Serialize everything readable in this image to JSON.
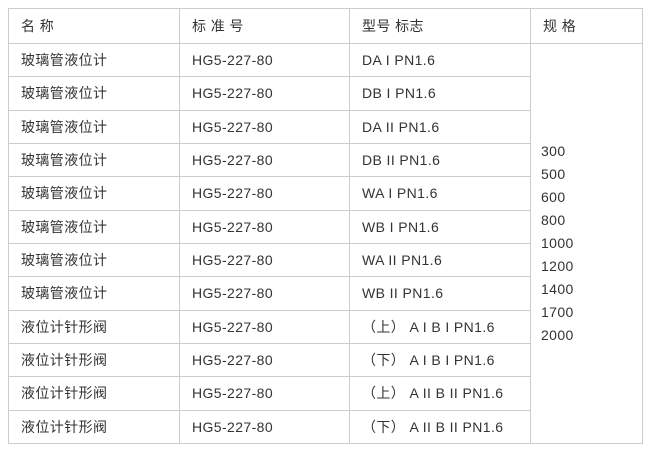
{
  "colors": {
    "border": "#cccccc",
    "text": "#333333",
    "background": "#ffffff"
  },
  "table": {
    "headers": [
      "名 称",
      "标 准 号",
      "型号 标志",
      "规 格"
    ],
    "rows": [
      {
        "name": "玻璃管液位计",
        "standard": "HG5-227-80",
        "model": "DA I PN1.6"
      },
      {
        "name": "玻璃管液位计",
        "standard": "HG5-227-80",
        "model": "DB I PN1.6"
      },
      {
        "name": "玻璃管液位计",
        "standard": "HG5-227-80",
        "model": "DA II PN1.6"
      },
      {
        "name": "玻璃管液位计",
        "standard": "HG5-227-80",
        "model": "DB II PN1.6"
      },
      {
        "name": "玻璃管液位计",
        "standard": "HG5-227-80",
        "model": "WA I PN1.6"
      },
      {
        "name": "玻璃管液位计",
        "standard": "HG5-227-80",
        "model": "WB I PN1.6"
      },
      {
        "name": "玻璃管液位计",
        "standard": "HG5-227-80",
        "model": "WA II PN1.6"
      },
      {
        "name": "玻璃管液位计",
        "standard": "HG5-227-80",
        "model": "WB II PN1.6"
      },
      {
        "name": "液位计针形阀",
        "standard": "HG5-227-80",
        "model": "（上） A I B I PN1.6"
      },
      {
        "name": "液位计针形阀",
        "standard": "HG5-227-80",
        "model": "（下） A I B I PN1.6"
      },
      {
        "name": "液位计针形阀",
        "standard": "HG5-227-80",
        "model": "（上） A II B II PN1.6"
      },
      {
        "name": "液位计针形阀",
        "standard": "HG5-227-80",
        "model": "（下） A II B II PN1.6"
      }
    ],
    "spec_values": [
      "300",
      "500",
      "600",
      "800",
      "1000",
      "1200",
      "1400",
      "1700",
      "2000"
    ]
  }
}
